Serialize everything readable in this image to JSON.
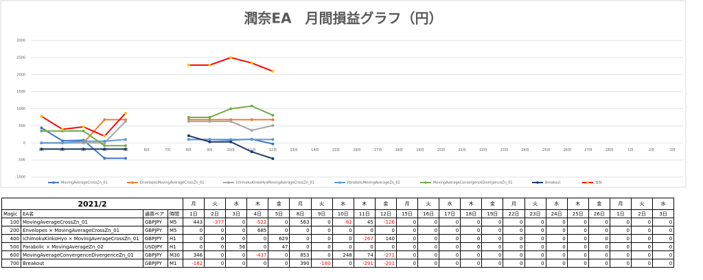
{
  "chart_data": {
    "type": "line",
    "title": "潤奈EA　月間損益グラフ（円）",
    "categories": [
      "1日",
      "2日",
      "3日",
      "4日",
      "5日",
      "6日",
      "7日",
      "8日",
      "9日",
      "10日",
      "11日",
      "12日",
      "13日",
      "14日",
      "15日",
      "16日",
      "17日",
      "18日",
      "19日",
      "20日",
      "21日",
      "22日",
      "23日",
      "24日",
      "25日",
      "26日",
      "27日",
      "28日",
      "1日",
      "2日",
      "3日"
    ],
    "ylim": [
      -1000,
      3000
    ],
    "yticks": [
      -1000,
      -500,
      0,
      500,
      1000,
      1500,
      2000,
      2500,
      3000
    ],
    "grid": true,
    "legend": "bottom",
    "series": [
      {
        "name": "MovingAverageCrossZn_01",
        "color": "#4472c4",
        "values": [
          440,
          60,
          80,
          -450,
          -450,
          null,
          null,
          100,
          100,
          80,
          110,
          -30,
          null,
          null,
          null,
          null,
          null,
          null,
          null,
          null,
          null,
          null,
          null,
          null,
          null,
          null,
          null,
          null,
          null,
          null,
          null
        ]
      },
      {
        "name": "EnvelopesMovingAverageCrossZn_01",
        "color": "#ed7d31",
        "values": [
          0,
          0,
          0,
          680,
          680,
          null,
          null,
          680,
          680,
          680,
          680,
          680,
          null,
          null,
          null,
          null,
          null,
          null,
          null,
          null,
          null,
          null,
          null,
          null,
          null,
          null,
          null,
          null,
          null,
          null,
          null
        ]
      },
      {
        "name": "IchimokuKinkoHyoMovingAverageCrossZn_01",
        "color": "#a5a5a5",
        "values": [
          0,
          0,
          0,
          0,
          630,
          null,
          null,
          630,
          630,
          630,
          370,
          510,
          null,
          null,
          null,
          null,
          null,
          null,
          null,
          null,
          null,
          null,
          null,
          null,
          null,
          null,
          null,
          null,
          null,
          null,
          null
        ]
      },
      {
        "name": "ParabolicMovingAverageZn_02",
        "color": "#5b9bd5",
        "values": [
          0,
          0,
          50,
          50,
          100,
          null,
          null,
          100,
          100,
          100,
          100,
          100,
          null,
          null,
          null,
          null,
          null,
          null,
          null,
          null,
          null,
          null,
          null,
          null,
          null,
          null,
          null,
          null,
          null,
          null,
          null
        ]
      },
      {
        "name": "MovingAverageConvergenceDivergenceZn_01",
        "color": "#70ad47",
        "values": [
          350,
          350,
          350,
          -80,
          -80,
          null,
          null,
          750,
          750,
          1000,
          1080,
          810,
          null,
          null,
          null,
          null,
          null,
          null,
          null,
          null,
          null,
          null,
          null,
          null,
          null,
          null,
          null,
          null,
          null,
          null,
          null
        ]
      },
      {
        "name": "Breakout",
        "color": "#1f3864",
        "values": [
          -180,
          -180,
          -180,
          -180,
          -180,
          null,
          null,
          210,
          30,
          30,
          -260,
          -460,
          null,
          null,
          null,
          null,
          null,
          null,
          null,
          null,
          null,
          null,
          null,
          null,
          null,
          null,
          null,
          null,
          null,
          null,
          null
        ]
      },
      {
        "name": "合計",
        "color": "#ff0000",
        "marker_color": "#ffc000",
        "values": [
          780,
          400,
          470,
          200,
          870,
          null,
          null,
          2280,
          2280,
          2500,
          2340,
          2100,
          null,
          null,
          null,
          null,
          null,
          null,
          null,
          null,
          null,
          null,
          null,
          null,
          null,
          null,
          null,
          null,
          null,
          null,
          null
        ]
      }
    ]
  },
  "table": {
    "title": "2021/2",
    "weekdays": [
      "月",
      "火",
      "水",
      "木",
      "金",
      "月",
      "火",
      "水",
      "木",
      "金",
      "月",
      "火",
      "水",
      "木",
      "金",
      "月",
      "火",
      "水",
      "木",
      "金",
      "月",
      "火",
      "水"
    ],
    "header": [
      "Magic",
      "EA名",
      "通貨ペア",
      "時間"
    ],
    "days": [
      "1日",
      "2日",
      "3日",
      "4日",
      "5日",
      "8日",
      "9日",
      "10日",
      "11日",
      "12日",
      "15日",
      "16日",
      "17日",
      "18日",
      "19日",
      "22日",
      "23日",
      "24日",
      "25日",
      "26日",
      "1日",
      "2日",
      "3日"
    ],
    "rows": [
      [
        100,
        "MovingAverageCrossZn_01",
        "GBPJPY",
        "M5",
        443,
        -377,
        0,
        -522,
        0,
        563,
        0,
        -82,
        45,
        -126,
        0,
        0,
        0,
        0,
        0,
        0,
        0,
        0,
        0,
        0,
        0,
        0,
        0
      ],
      [
        200,
        "Envelopes × MovingAverageCrossZn_01",
        "GBPJPY",
        "M5",
        0,
        0,
        0,
        685,
        0,
        0,
        0,
        0,
        0,
        0,
        0,
        0,
        0,
        0,
        0,
        0,
        0,
        0,
        0,
        0,
        0,
        0,
        0
      ],
      [
        400,
        "IchimokuKinkoHyo × MovingAverageCrossZn_01",
        "GBPJPY",
        "H1",
        0,
        0,
        0,
        0,
        629,
        0,
        0,
        0,
        -267,
        140,
        0,
        0,
        0,
        0,
        0,
        0,
        0,
        0,
        0,
        0,
        0,
        0,
        0
      ],
      [
        500,
        "Parabolic × MovingAverageZn_02",
        "USDJPY",
        "H1",
        0,
        0,
        56,
        0,
        47,
        0,
        0,
        0,
        0,
        0,
        0,
        0,
        0,
        0,
        0,
        0,
        0,
        0,
        0,
        0,
        0,
        0,
        0
      ],
      [
        600,
        "MovingAverageConvergenceDivergenceZn_01",
        "GBPJPY",
        "M30",
        346,
        0,
        0,
        -437,
        0,
        853,
        0,
        248,
        74,
        -271,
        0,
        0,
        0,
        0,
        0,
        0,
        0,
        0,
        0,
        0,
        0,
        0,
        0
      ],
      [
        700,
        "Breakout",
        "GBPJPY",
        "M1",
        -182,
        0,
        0,
        0,
        0,
        390,
        -180,
        0,
        -291,
        -201,
        0,
        0,
        0,
        0,
        0,
        0,
        0,
        0,
        0,
        0,
        0,
        0,
        0
      ]
    ]
  }
}
